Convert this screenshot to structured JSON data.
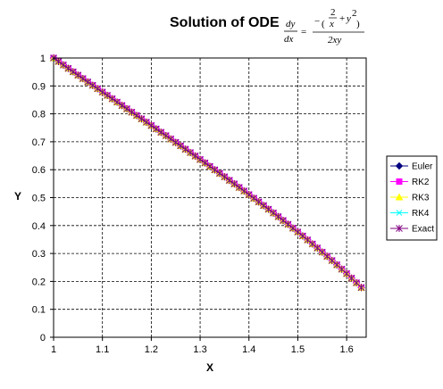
{
  "chart_data": {
    "type": "line",
    "title": "Solution of ODE",
    "equation": {
      "lhs_num": "dy",
      "lhs_den": "dx",
      "eq": "=",
      "rhs_num_minus": "−",
      "rhs_num_inner_num": "2",
      "rhs_num_inner_den": "x",
      "rhs_num_plus": "+",
      "rhs_num_y": "y",
      "rhs_num_exp": "2",
      "rhs_den": "2xy"
    },
    "xlabel": "X",
    "ylabel": "Y",
    "xlim": [
      1,
      1.64
    ],
    "ylim": [
      0,
      1
    ],
    "xticks": [
      "1",
      "1.1",
      "1.2",
      "1.3",
      "1.4",
      "1.5",
      "1.6"
    ],
    "yticks": [
      "0",
      "0.1",
      "0.2",
      "0.3",
      "0.4",
      "0.5",
      "0.6",
      "0.7",
      "0.8",
      "0.9",
      "1"
    ],
    "grid": true,
    "legend_position": "right",
    "series": [
      {
        "name": "Euler",
        "color": "#000080",
        "marker": "diamond"
      },
      {
        "name": "RK2",
        "color": "#ff00ff",
        "marker": "square"
      },
      {
        "name": "RK3",
        "color": "#ffff00",
        "marker": "triangle"
      },
      {
        "name": "RK4",
        "color": "#00ffff",
        "marker": "x"
      },
      {
        "name": "Exact",
        "color": "#800080",
        "marker": "star"
      }
    ],
    "x_start": 1,
    "x_step": 0.01,
    "n_points": 64,
    "values": [
      1.0,
      0.9875,
      0.9751,
      0.9628,
      0.9506,
      0.9384,
      0.9262,
      0.9141,
      0.9021,
      0.89,
      0.878,
      0.866,
      0.854,
      0.842,
      0.83,
      0.818,
      0.8061,
      0.7941,
      0.7821,
      0.7701,
      0.7581,
      0.746,
      0.734,
      0.7219,
      0.7098,
      0.6977,
      0.6856,
      0.6734,
      0.6612,
      0.6489,
      0.6366,
      0.6243,
      0.6119,
      0.5995,
      0.587,
      0.5745,
      0.5619,
      0.5492,
      0.5365,
      0.5237,
      0.5108,
      0.4978,
      0.4848,
      0.4717,
      0.4584,
      0.4451,
      0.4317,
      0.4181,
      0.4045,
      0.3907,
      0.3768,
      0.3627,
      0.3485,
      0.3341,
      0.3196,
      0.3049,
      0.2899,
      0.2748,
      0.2594,
      0.2438,
      0.2278,
      0.2116,
      0.195,
      0.178
    ]
  }
}
